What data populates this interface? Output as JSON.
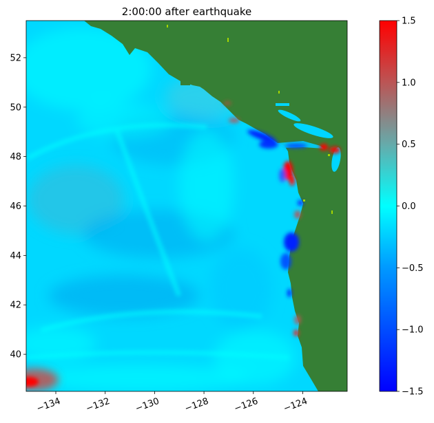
{
  "chart_data": {
    "type": "heatmap",
    "title": "2:00:00 after earthquake",
    "xlabel": "",
    "ylabel": "",
    "xlim": [
      -135.2,
      -122.2
    ],
    "ylim": [
      38.5,
      53.5
    ],
    "x_ticks": [
      {
        "value": -134,
        "label": "−134"
      },
      {
        "value": -132,
        "label": "−132"
      },
      {
        "value": -130,
        "label": "−130"
      },
      {
        "value": -128,
        "label": "−128"
      },
      {
        "value": -126,
        "label": "−126"
      },
      {
        "value": -124,
        "label": "−124"
      }
    ],
    "y_ticks": [
      {
        "value": 40,
        "label": "40"
      },
      {
        "value": 42,
        "label": "42"
      },
      {
        "value": 44,
        "label": "44"
      },
      {
        "value": 46,
        "label": "46"
      },
      {
        "value": 48,
        "label": "48"
      },
      {
        "value": 50,
        "label": "50"
      },
      {
        "value": 52,
        "label": "52"
      }
    ],
    "colorbar": {
      "vmin": -1.5,
      "vmax": 1.5,
      "ticks": [
        {
          "value": 1.5,
          "label": "1.5"
        },
        {
          "value": 1.0,
          "label": "1.0"
        },
        {
          "value": 0.5,
          "label": "0.5"
        },
        {
          "value": 0.0,
          "label": "0.0"
        },
        {
          "value": -0.5,
          "label": "−0.5"
        },
        {
          "value": -1.0,
          "label": "−1.0"
        },
        {
          "value": -1.5,
          "label": "−1.5"
        }
      ],
      "stops": [
        {
          "value": -1.5,
          "color": "#0000ff"
        },
        {
          "value": -0.5,
          "color": "#0099ff"
        },
        {
          "value": 0.0,
          "color": "#00ffff"
        },
        {
          "value": 0.5,
          "color": "#66aaaa"
        },
        {
          "value": 1.0,
          "color": "#bb5555"
        },
        {
          "value": 1.5,
          "color": "#ff0000"
        }
      ]
    },
    "colors": {
      "land": "#367f35",
      "ocean_base": "#00d8ff"
    }
  }
}
